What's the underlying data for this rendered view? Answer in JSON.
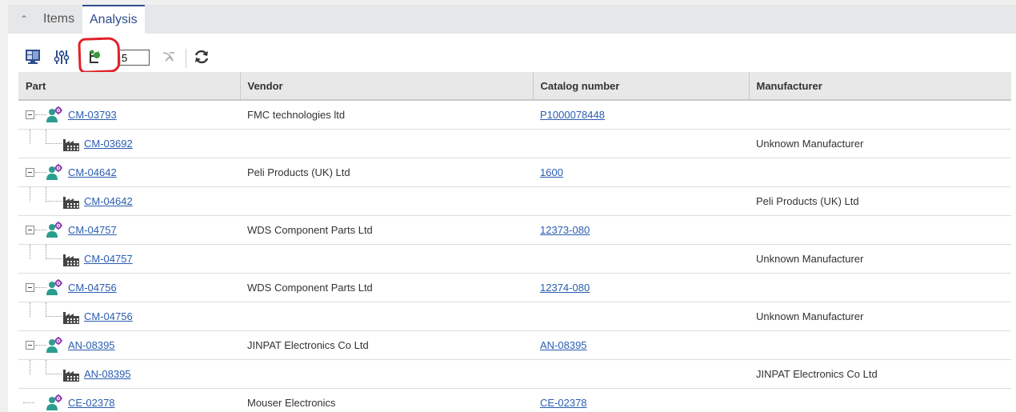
{
  "tabs": [
    {
      "label": "Items",
      "active": false
    },
    {
      "label": "Analysis",
      "active": true
    }
  ],
  "toolbar": {
    "icons": [
      "layout-icon",
      "filter-sliders-icon",
      "tree-expand-icon",
      "collapse-branch-icon",
      "refresh-icon"
    ],
    "depth_value": "5"
  },
  "columns": [
    "Part",
    "Vendor",
    "Catalog number",
    "Manufacturer"
  ],
  "rows": [
    {
      "level": 0,
      "part": "CM-03793",
      "vendor": "FMC technologies ltd",
      "catalog": "P1000078448",
      "manufacturer": ""
    },
    {
      "level": 1,
      "part": "CM-03692",
      "vendor": "",
      "catalog": "",
      "manufacturer": "Unknown Manufacturer"
    },
    {
      "level": 0,
      "part": "CM-04642",
      "vendor": "Peli Products (UK) Ltd",
      "catalog": "1600",
      "manufacturer": ""
    },
    {
      "level": 1,
      "part": "CM-04642",
      "vendor": "",
      "catalog": "",
      "manufacturer": "Peli Products (UK) Ltd"
    },
    {
      "level": 0,
      "part": "CM-04757",
      "vendor": "WDS Component Parts Ltd",
      "catalog": "12373-080",
      "manufacturer": ""
    },
    {
      "level": 1,
      "part": "CM-04757",
      "vendor": "",
      "catalog": "",
      "manufacturer": "Unknown Manufacturer"
    },
    {
      "level": 0,
      "part": "CM-04756",
      "vendor": "WDS Component Parts Ltd",
      "catalog": "12374-080",
      "manufacturer": ""
    },
    {
      "level": 1,
      "part": "CM-04756",
      "vendor": "",
      "catalog": "",
      "manufacturer": "Unknown Manufacturer"
    },
    {
      "level": 0,
      "part": "AN-08395",
      "vendor": "JINPAT Electronics Co Ltd",
      "catalog": "AN-08395",
      "manufacturer": ""
    },
    {
      "level": 1,
      "part": "AN-08395",
      "vendor": "",
      "catalog": "",
      "manufacturer": "JINPAT Electronics Co Ltd"
    },
    {
      "level": 0,
      "part": "CE-02378",
      "vendor": "Mouser Electronics",
      "catalog": "CE-02378",
      "manufacturer": ""
    }
  ]
}
